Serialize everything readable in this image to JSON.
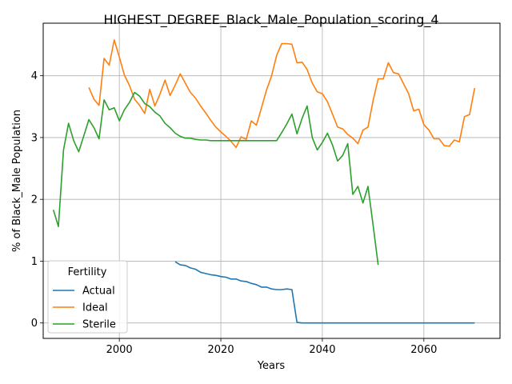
{
  "chart_data": {
    "type": "line",
    "title": "HIGHEST_DEGREE_Black_Male_Population_scoring_4",
    "xlabel": "Years",
    "ylabel": "% of Black_Male Population",
    "xlim": [
      1985,
      2075
    ],
    "ylim": [
      -0.25,
      4.85
    ],
    "xticks": [
      2000,
      2020,
      2040,
      2060
    ],
    "yticks": [
      0,
      1,
      2,
      3,
      4
    ],
    "grid": true,
    "legend": {
      "title": "Fertility",
      "placement": "lower-left"
    },
    "series": [
      {
        "name": "Actual",
        "color": "#1f77b4",
        "x": [
          2011,
          2012,
          2013,
          2014,
          2015,
          2016,
          2017,
          2018,
          2019,
          2020,
          2021,
          2022,
          2023,
          2024,
          2025,
          2026,
          2027,
          2028,
          2029,
          2030,
          2031,
          2032,
          2033,
          2034,
          2035,
          2036,
          2040,
          2050,
          2060,
          2070
        ],
        "y": [
          0.99,
          0.94,
          0.93,
          0.89,
          0.87,
          0.82,
          0.8,
          0.78,
          0.77,
          0.75,
          0.74,
          0.71,
          0.71,
          0.68,
          0.67,
          0.64,
          0.62,
          0.58,
          0.58,
          0.55,
          0.54,
          0.54,
          0.55,
          0.54,
          0.01,
          0.0,
          0.0,
          0.0,
          0.0,
          0.0
        ]
      },
      {
        "name": "Ideal",
        "color": "#ff7f0e",
        "x": [
          1994,
          1995,
          1996,
          1997,
          1998,
          1999,
          2000,
          2001,
          2002,
          2003,
          2004,
          2005,
          2006,
          2007,
          2008,
          2009,
          2010,
          2011,
          2012,
          2013,
          2014,
          2015,
          2016,
          2017,
          2018,
          2019,
          2020,
          2021,
          2022,
          2023,
          2024,
          2025,
          2026,
          2027,
          2028,
          2029,
          2030,
          2031,
          2032,
          2033,
          2034,
          2035,
          2036,
          2037,
          2038,
          2039,
          2040,
          2041,
          2042,
          2043,
          2044,
          2045,
          2046,
          2047,
          2048,
          2049,
          2050,
          2051,
          2052,
          2053,
          2054,
          2055,
          2056,
          2057,
          2058,
          2059,
          2060,
          2061,
          2062,
          2063,
          2064,
          2065,
          2066,
          2067,
          2068,
          2069,
          2070
        ],
        "y": [
          3.81,
          3.62,
          3.52,
          4.28,
          4.17,
          4.58,
          4.3,
          4.01,
          3.84,
          3.62,
          3.52,
          3.39,
          3.78,
          3.51,
          3.7,
          3.93,
          3.68,
          3.85,
          4.03,
          3.88,
          3.73,
          3.64,
          3.51,
          3.4,
          3.28,
          3.17,
          3.09,
          3.02,
          2.94,
          2.84,
          3.01,
          2.97,
          3.27,
          3.2,
          3.48,
          3.77,
          4.0,
          4.33,
          4.52,
          4.52,
          4.51,
          4.21,
          4.22,
          4.1,
          3.88,
          3.74,
          3.71,
          3.58,
          3.38,
          3.17,
          3.14,
          3.05,
          2.99,
          2.9,
          3.12,
          3.17,
          3.6,
          3.95,
          3.95,
          4.21,
          4.05,
          4.03,
          3.87,
          3.71,
          3.43,
          3.46,
          3.21,
          3.12,
          2.98,
          2.98,
          2.87,
          2.86,
          2.96,
          2.93,
          3.34,
          3.37,
          3.8
        ]
      },
      {
        "name": "Sterile",
        "color": "#2ca02c",
        "x": [
          1987,
          1988,
          1989,
          1990,
          1991,
          1992,
          1993,
          1994,
          1995,
          1996,
          1997,
          1998,
          1999,
          2000,
          2001,
          2002,
          2003,
          2004,
          2005,
          2006,
          2007,
          2008,
          2009,
          2010,
          2011,
          2012,
          2013,
          2014,
          2015,
          2016,
          2017,
          2018,
          2019,
          2020,
          2021,
          2022,
          2023,
          2024,
          2025,
          2026,
          2027,
          2028,
          2029,
          2030,
          2031,
          2032,
          2033,
          2034,
          2035,
          2036,
          2037,
          2038,
          2039,
          2040,
          2041,
          2042,
          2043,
          2044,
          2045,
          2046,
          2047,
          2048,
          2049,
          2050,
          2051
        ],
        "y": [
          1.83,
          1.56,
          2.8,
          3.23,
          2.95,
          2.77,
          3.03,
          3.29,
          3.16,
          2.98,
          3.61,
          3.45,
          3.48,
          3.27,
          3.45,
          3.57,
          3.73,
          3.67,
          3.55,
          3.5,
          3.41,
          3.35,
          3.23,
          3.16,
          3.07,
          3.02,
          2.99,
          2.99,
          2.97,
          2.96,
          2.96,
          2.95,
          2.95,
          2.95,
          2.95,
          2.95,
          2.95,
          2.95,
          2.95,
          2.95,
          2.95,
          2.95,
          2.95,
          2.95,
          2.95,
          3.08,
          3.22,
          3.38,
          3.06,
          3.31,
          3.51,
          3.0,
          2.8,
          2.92,
          3.07,
          2.88,
          2.62,
          2.71,
          2.9,
          2.08,
          2.21,
          1.94,
          2.21,
          1.58,
          0.94
        ]
      }
    ]
  }
}
